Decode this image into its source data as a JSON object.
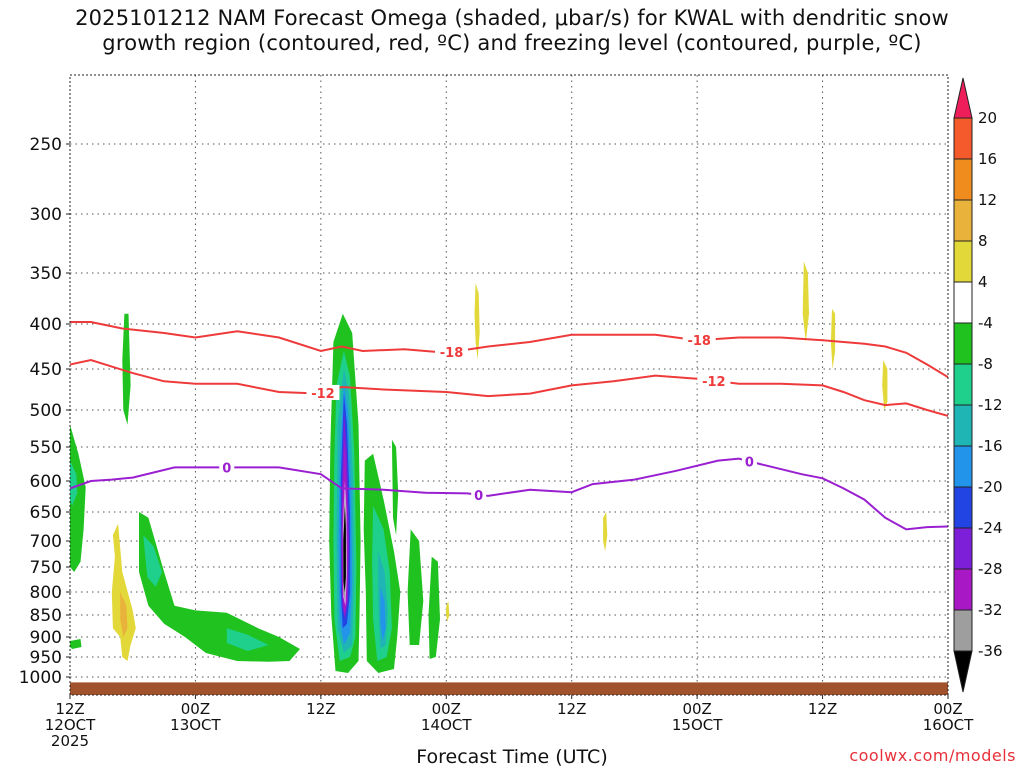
{
  "title": {
    "line1": "2025101212 NAM Forecast Omega (shaded, μbar/s) for KWAL with dendritic snow",
    "line2": "growth region (contoured, red, ºC) and freezing level (contoured, purple, ºC)"
  },
  "xlabel": "Forecast Time (UTC)",
  "credit": "coolwx.com/models",
  "chart_data": {
    "type": "time-height",
    "y_axis": {
      "ticks": [
        250,
        300,
        350,
        400,
        450,
        500,
        550,
        600,
        650,
        700,
        750,
        800,
        850,
        900,
        950,
        1000
      ],
      "unit": "mb",
      "inverted": true
    },
    "x_axis": {
      "range_hours": [
        0,
        84
      ],
      "ticks": [
        {
          "hour": 0,
          "line1": "12Z",
          "line2": "12OCT",
          "line3": "2025"
        },
        {
          "hour": 12,
          "line1": "00Z",
          "line2": "13OCT",
          "line3": ""
        },
        {
          "hour": 24,
          "line1": "12Z",
          "line2": "",
          "line3": ""
        },
        {
          "hour": 36,
          "line1": "00Z",
          "line2": "14OCT",
          "line3": ""
        },
        {
          "hour": 48,
          "line1": "12Z",
          "line2": "",
          "line3": ""
        },
        {
          "hour": 60,
          "line1": "00Z",
          "line2": "15OCT",
          "line3": ""
        },
        {
          "hour": 72,
          "line1": "12Z",
          "line2": "",
          "line3": ""
        },
        {
          "hour": 84,
          "line1": "00Z",
          "line2": "16OCT",
          "line3": ""
        }
      ]
    },
    "grid": "dotted",
    "contours": [
      {
        "name": "-18",
        "color": "#ee3a3a",
        "labels": [
          [
            36.5,
            -18
          ],
          [
            60.2,
            -18
          ]
        ],
        "points": [
          [
            0,
            398
          ],
          [
            2,
            398
          ],
          [
            5,
            405
          ],
          [
            9,
            410
          ],
          [
            12,
            415
          ],
          [
            16,
            408
          ],
          [
            20,
            415
          ],
          [
            24,
            430
          ],
          [
            26,
            425
          ],
          [
            28,
            430
          ],
          [
            32,
            428
          ],
          [
            36,
            432
          ],
          [
            40,
            425
          ],
          [
            44,
            420
          ],
          [
            48,
            412
          ],
          [
            52,
            412
          ],
          [
            56,
            412
          ],
          [
            60,
            418
          ],
          [
            64,
            415
          ],
          [
            68,
            415
          ],
          [
            72,
            418
          ],
          [
            74,
            420
          ],
          [
            76,
            422
          ],
          [
            78,
            425
          ],
          [
            80,
            432
          ],
          [
            82,
            445
          ],
          [
            84,
            460
          ]
        ]
      },
      {
        "name": "-12",
        "color": "#ee3a3a",
        "labels": [
          [
            24.2,
            -12
          ],
          [
            61.6,
            -12
          ]
        ],
        "points": [
          [
            0,
            445
          ],
          [
            2,
            440
          ],
          [
            6,
            455
          ],
          [
            9,
            465
          ],
          [
            12,
            468
          ],
          [
            16,
            468
          ],
          [
            20,
            478
          ],
          [
            24,
            480
          ],
          [
            26,
            472
          ],
          [
            30,
            475
          ],
          [
            36,
            478
          ],
          [
            40,
            483
          ],
          [
            44,
            480
          ],
          [
            48,
            470
          ],
          [
            52,
            465
          ],
          [
            56,
            458
          ],
          [
            60,
            462
          ],
          [
            64,
            468
          ],
          [
            68,
            468
          ],
          [
            72,
            470
          ],
          [
            74,
            478
          ],
          [
            76,
            488
          ],
          [
            78,
            494
          ],
          [
            80,
            492
          ],
          [
            82,
            500
          ],
          [
            84,
            508
          ]
        ]
      },
      {
        "name": "0",
        "color": "#9a1fd1",
        "labels": [
          [
            15.0,
            0
          ],
          [
            39.1,
            0
          ],
          [
            65.0,
            0
          ]
        ],
        "points": [
          [
            0,
            612
          ],
          [
            2,
            600
          ],
          [
            4,
            598
          ],
          [
            6,
            595
          ],
          [
            10,
            580
          ],
          [
            14,
            580
          ],
          [
            20,
            580
          ],
          [
            24,
            590
          ],
          [
            26,
            612
          ],
          [
            30,
            614
          ],
          [
            34,
            619
          ],
          [
            38,
            620
          ],
          [
            40,
            624
          ],
          [
            44,
            614
          ],
          [
            48,
            618
          ],
          [
            50,
            605
          ],
          [
            54,
            598
          ],
          [
            58,
            585
          ],
          [
            62,
            570
          ],
          [
            64,
            567
          ],
          [
            66,
            575
          ],
          [
            70,
            590
          ],
          [
            72,
            596
          ],
          [
            74,
            612
          ],
          [
            76,
            630
          ],
          [
            78,
            660
          ],
          [
            80,
            680
          ],
          [
            82,
            676
          ],
          [
            84,
            675
          ]
        ]
      }
    ],
    "omega_colorbar": {
      "unit": "μbar/s",
      "ticks": [
        20,
        16,
        12,
        8,
        4,
        -4,
        -8,
        -12,
        -16,
        -20,
        -24,
        -28,
        -32,
        -36
      ],
      "colors": [
        "#ee1e5a",
        "#f55a2c",
        "#f08c1e",
        "#e9b23a",
        "#e2d83a",
        "#ffffff",
        "#1fc21f",
        "#1fcf8c",
        "#20b5b5",
        "#2295ea",
        "#2144e2",
        "#7d1ed9",
        "#a819c5",
        "#9e9e9e",
        "#000000"
      ]
    },
    "ground_color": "#a0522d"
  }
}
